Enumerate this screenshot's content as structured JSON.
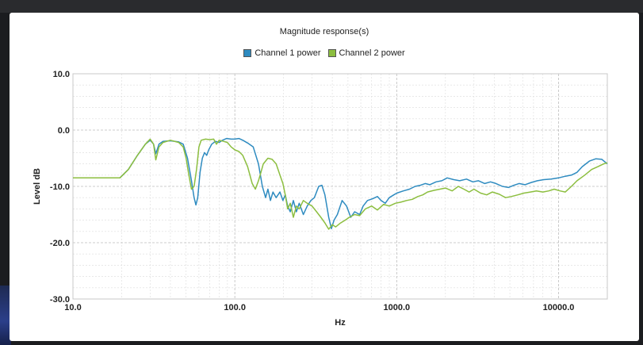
{
  "chart_data": {
    "type": "line",
    "title": "Magnitude response(s)",
    "xlabel": "Hz",
    "ylabel": "Level dB",
    "x_scale": "log",
    "xlim": [
      10,
      20000
    ],
    "ylim": [
      -30,
      10
    ],
    "x_ticks": [
      {
        "value": 10,
        "label": "10.0"
      },
      {
        "value": 100,
        "label": "100.0"
      },
      {
        "value": 1000,
        "label": "1000.0"
      },
      {
        "value": 10000,
        "label": "10000.0"
      }
    ],
    "y_ticks": [
      {
        "value": 10,
        "label": "10.0"
      },
      {
        "value": 0,
        "label": "0.0"
      },
      {
        "value": -10,
        "label": "-10.0"
      },
      {
        "value": -20,
        "label": "-20.0"
      },
      {
        "value": -30,
        "label": "-30.0"
      }
    ],
    "grid": true,
    "legend_position": "top-center",
    "series": [
      {
        "name": "Channel 1 power",
        "color": "#2e8bc0",
        "points": [
          [
            10,
            -8.5
          ],
          [
            19.5,
            -8.5
          ],
          [
            22,
            -7
          ],
          [
            25,
            -4.5
          ],
          [
            28,
            -2.5
          ],
          [
            30,
            -1.8
          ],
          [
            31.5,
            -2.5
          ],
          [
            32.5,
            -4.2
          ],
          [
            34,
            -2.5
          ],
          [
            36,
            -2
          ],
          [
            40,
            -1.9
          ],
          [
            45,
            -2.1
          ],
          [
            48,
            -2.5
          ],
          [
            51,
            -5
          ],
          [
            54,
            -9
          ],
          [
            56,
            -12
          ],
          [
            57.5,
            -13.3
          ],
          [
            59,
            -12
          ],
          [
            61,
            -7.5
          ],
          [
            63,
            -5
          ],
          [
            65,
            -4
          ],
          [
            67,
            -4.5
          ],
          [
            69,
            -3.5
          ],
          [
            72,
            -2.5
          ],
          [
            76,
            -2
          ],
          [
            80,
            -2.2
          ],
          [
            84,
            -1.8
          ],
          [
            89,
            -1.5
          ],
          [
            95,
            -1.6
          ],
          [
            100,
            -1.6
          ],
          [
            106,
            -1.5
          ],
          [
            112,
            -1.8
          ],
          [
            120,
            -2.3
          ],
          [
            130,
            -3
          ],
          [
            140,
            -6
          ],
          [
            148,
            -10
          ],
          [
            155,
            -12
          ],
          [
            160,
            -10.5
          ],
          [
            166,
            -12.5
          ],
          [
            172,
            -11
          ],
          [
            180,
            -12
          ],
          [
            190,
            -11
          ],
          [
            198,
            -12.5
          ],
          [
            205,
            -11.5
          ],
          [
            212,
            -13.5
          ],
          [
            220,
            -14.5
          ],
          [
            230,
            -12.5
          ],
          [
            240,
            -14.5
          ],
          [
            250,
            -13
          ],
          [
            265,
            -15
          ],
          [
            280,
            -13.5
          ],
          [
            295,
            -12.5
          ],
          [
            310,
            -12
          ],
          [
            330,
            -10
          ],
          [
            345,
            -9.8
          ],
          [
            360,
            -11.5
          ],
          [
            380,
            -15.5
          ],
          [
            395,
            -17.5
          ],
          [
            410,
            -16
          ],
          [
            430,
            -15
          ],
          [
            460,
            -12.5
          ],
          [
            490,
            -13.5
          ],
          [
            520,
            -15.5
          ],
          [
            550,
            -14.5
          ],
          [
            590,
            -15
          ],
          [
            620,
            -13.5
          ],
          [
            660,
            -12.5
          ],
          [
            710,
            -12.2
          ],
          [
            760,
            -11.8
          ],
          [
            800,
            -12.5
          ],
          [
            850,
            -13
          ],
          [
            900,
            -12
          ],
          [
            960,
            -11.5
          ],
          [
            1000,
            -11.2
          ],
          [
            1100,
            -10.8
          ],
          [
            1200,
            -10.5
          ],
          [
            1300,
            -10
          ],
          [
            1400,
            -9.8
          ],
          [
            1500,
            -9.5
          ],
          [
            1600,
            -9.7
          ],
          [
            1750,
            -9.2
          ],
          [
            1900,
            -9
          ],
          [
            2050,
            -8.5
          ],
          [
            2250,
            -8.8
          ],
          [
            2450,
            -9
          ],
          [
            2700,
            -8.7
          ],
          [
            2950,
            -9.2
          ],
          [
            3200,
            -9
          ],
          [
            3500,
            -9.5
          ],
          [
            3800,
            -9.2
          ],
          [
            4100,
            -9.5
          ],
          [
            4500,
            -10
          ],
          [
            4900,
            -10.2
          ],
          [
            5300,
            -9.8
          ],
          [
            5700,
            -9.5
          ],
          [
            6200,
            -9.7
          ],
          [
            6800,
            -9.3
          ],
          [
            7400,
            -9
          ],
          [
            8100,
            -8.8
          ],
          [
            9000,
            -8.7
          ],
          [
            10000,
            -8.5
          ],
          [
            11000,
            -8.2
          ],
          [
            12000,
            -8
          ],
          [
            13000,
            -7.5
          ],
          [
            14000,
            -6.5
          ],
          [
            15500,
            -5.5
          ],
          [
            17000,
            -5.1
          ],
          [
            18500,
            -5.2
          ],
          [
            20000,
            -6
          ]
        ]
      },
      {
        "name": "Channel 2 power",
        "color": "#8cbe3f",
        "points": [
          [
            10,
            -8.5
          ],
          [
            19.5,
            -8.5
          ],
          [
            22,
            -7
          ],
          [
            25,
            -4.5
          ],
          [
            28,
            -2.5
          ],
          [
            30,
            -1.6
          ],
          [
            31.5,
            -2.5
          ],
          [
            32.5,
            -5.3
          ],
          [
            34,
            -3
          ],
          [
            36,
            -2.2
          ],
          [
            40,
            -1.8
          ],
          [
            45,
            -2.2
          ],
          [
            48,
            -3
          ],
          [
            50,
            -5
          ],
          [
            52,
            -8
          ],
          [
            54,
            -10.5
          ],
          [
            56,
            -10
          ],
          [
            58,
            -7
          ],
          [
            60,
            -3
          ],
          [
            62,
            -1.8
          ],
          [
            66,
            -1.6
          ],
          [
            70,
            -1.7
          ],
          [
            74,
            -1.6
          ],
          [
            77,
            -2.5
          ],
          [
            80,
            -1.8
          ],
          [
            85,
            -2
          ],
          [
            90,
            -2.2
          ],
          [
            95,
            -3
          ],
          [
            100,
            -3.5
          ],
          [
            106,
            -3.8
          ],
          [
            112,
            -4.5
          ],
          [
            120,
            -6.5
          ],
          [
            128,
            -9.5
          ],
          [
            134,
            -10.5
          ],
          [
            140,
            -9
          ],
          [
            145,
            -7.5
          ],
          [
            150,
            -6
          ],
          [
            160,
            -5
          ],
          [
            170,
            -5.2
          ],
          [
            180,
            -6
          ],
          [
            190,
            -8
          ],
          [
            198,
            -9.5
          ],
          [
            205,
            -11.5
          ],
          [
            212,
            -14
          ],
          [
            220,
            -13
          ],
          [
            230,
            -15.5
          ],
          [
            240,
            -13.5
          ],
          [
            250,
            -14
          ],
          [
            265,
            -12.5
          ],
          [
            280,
            -13
          ],
          [
            300,
            -13.5
          ],
          [
            320,
            -14.5
          ],
          [
            340,
            -15.5
          ],
          [
            360,
            -16.5
          ],
          [
            380,
            -17.6
          ],
          [
            400,
            -16.8
          ],
          [
            420,
            -17.2
          ],
          [
            450,
            -16.5
          ],
          [
            480,
            -16
          ],
          [
            510,
            -15.5
          ],
          [
            550,
            -15
          ],
          [
            590,
            -15.2
          ],
          [
            640,
            -14
          ],
          [
            700,
            -13.5
          ],
          [
            760,
            -14.2
          ],
          [
            830,
            -13.2
          ],
          [
            900,
            -13.5
          ],
          [
            980,
            -13
          ],
          [
            1060,
            -12.8
          ],
          [
            1150,
            -12.5
          ],
          [
            1250,
            -12.3
          ],
          [
            1350,
            -11.8
          ],
          [
            1450,
            -11.5
          ],
          [
            1550,
            -11
          ],
          [
            1700,
            -10.7
          ],
          [
            1850,
            -10.5
          ],
          [
            2000,
            -10.3
          ],
          [
            2200,
            -10.8
          ],
          [
            2400,
            -10
          ],
          [
            2600,
            -10.5
          ],
          [
            2800,
            -11
          ],
          [
            3000,
            -10.5
          ],
          [
            3300,
            -11.2
          ],
          [
            3600,
            -11.5
          ],
          [
            3900,
            -11
          ],
          [
            4300,
            -11.4
          ],
          [
            4700,
            -12
          ],
          [
            5100,
            -11.8
          ],
          [
            5600,
            -11.5
          ],
          [
            6100,
            -11.2
          ],
          [
            6700,
            -11
          ],
          [
            7300,
            -10.8
          ],
          [
            8000,
            -11
          ],
          [
            8700,
            -10.8
          ],
          [
            9400,
            -10.5
          ],
          [
            10200,
            -10.8
          ],
          [
            11000,
            -11
          ],
          [
            12000,
            -10
          ],
          [
            13000,
            -9
          ],
          [
            14500,
            -8
          ],
          [
            16000,
            -7
          ],
          [
            17500,
            -6.5
          ],
          [
            19000,
            -6
          ],
          [
            20000,
            -5.8
          ]
        ]
      }
    ]
  }
}
